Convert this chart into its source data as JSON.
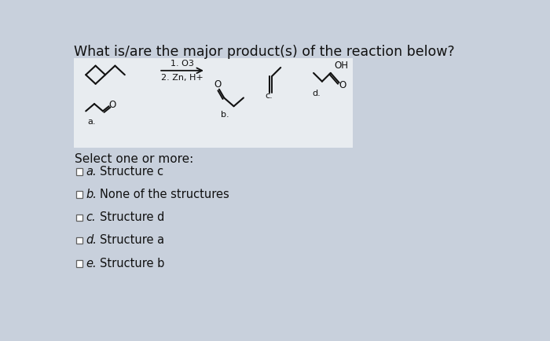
{
  "title": "What is/are the major product(s) of the reaction below?",
  "title_fontsize": 12.5,
  "box_bg": "#e8ecf0",
  "page_bg": "#c8d0dc",
  "reagent_line1": "1. O3",
  "reagent_line2": "2. Zn, H+",
  "select_text": "Select one or more:",
  "options": [
    {
      "letter": "a.",
      "text": "Structure c"
    },
    {
      "letter": "b.",
      "text": "None of the structures"
    },
    {
      "letter": "c.",
      "text": "Structure d"
    },
    {
      "letter": "d.",
      "text": "Structure a"
    },
    {
      "letter": "e.",
      "text": "Structure b"
    }
  ],
  "text_color": "#111111",
  "line_color": "#111111",
  "struct_label_color": "#111111"
}
